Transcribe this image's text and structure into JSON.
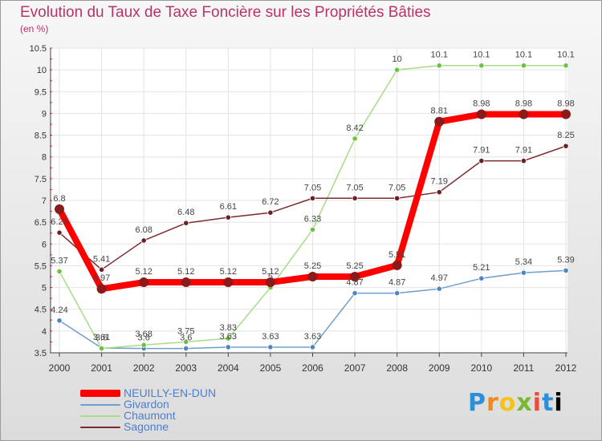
{
  "header": {
    "title": "Evolution du Taux de Taxe Foncière sur les Propriétés Bâties",
    "subtitle": "(en %)"
  },
  "logo": {
    "text": "Proxiti"
  },
  "chart_data": {
    "type": "line",
    "title": "Evolution du Taux de Taxe Foncière sur les Propriétés Bâties",
    "ylabel": "(en %)",
    "x": [
      "2000",
      "2001",
      "2002",
      "2003",
      "2004",
      "2005",
      "2006",
      "2007",
      "2008",
      "2009",
      "2010",
      "2011",
      "2012"
    ],
    "ylim": [
      3.5,
      10.5
    ],
    "yticks": [
      "3.5",
      "4",
      "4.5",
      "5",
      "5.5",
      "6",
      "6.5",
      "7",
      "7.5",
      "8",
      "8.5",
      "9",
      "9.5",
      "10",
      "10.5"
    ],
    "grid": true,
    "legend_position": "bottom-left",
    "series": [
      {
        "name": "NEUILLY-EN-DUN",
        "color": "#ff0000",
        "marker": "#8b1a1a",
        "emphasis": true,
        "values": [
          6.8,
          4.97,
          5.12,
          5.12,
          5.12,
          5.12,
          5.25,
          5.25,
          5.51,
          8.81,
          8.98,
          8.98,
          8.98
        ],
        "labels": [
          "6.8",
          "4.97",
          "5.12",
          "5.12",
          "5.12",
          "5.12",
          "5.25",
          "5.25",
          "5.51",
          "8.81",
          "8.98",
          "8.98",
          "8.98"
        ]
      },
      {
        "name": "Givardon",
        "color": "#6f9fcf",
        "marker": "#4f86c1",
        "values": [
          4.24,
          3.61,
          3.6,
          3.6,
          3.63,
          3.63,
          3.63,
          4.87,
          4.87,
          4.97,
          5.21,
          5.34,
          5.39
        ],
        "labels": [
          "4.24",
          "3.61",
          "3.6",
          "3.6",
          "3.63",
          "3.63",
          "3.63",
          "4.87",
          "4.87",
          "4.97",
          "5.21",
          "5.34",
          "5.39"
        ]
      },
      {
        "name": "Chaumont",
        "color": "#a8dc86",
        "marker": "#6fc23e",
        "values": [
          5.37,
          3.6,
          3.68,
          3.75,
          3.83,
          5.0,
          6.33,
          8.42,
          10.0,
          10.1,
          10.1,
          10.1,
          10.1
        ],
        "labels": [
          "5.37",
          "3.6",
          "3.68",
          "3.75",
          "3.83",
          "5",
          "6.33",
          "8.42",
          "10",
          "10.1",
          "10.1",
          "10.1",
          "10.1"
        ]
      },
      {
        "name": "Sagonne",
        "color": "#7b2b30",
        "marker": "#6d1f24",
        "values": [
          6.26,
          5.41,
          6.08,
          6.48,
          6.61,
          6.72,
          7.05,
          7.05,
          7.05,
          7.19,
          7.91,
          7.91,
          8.25
        ],
        "labels": [
          "6.26",
          "5.41",
          "6.08",
          "6.48",
          "6.61",
          "6.72",
          "7.05",
          "7.05",
          "7.05",
          "7.19",
          "7.91",
          "7.91",
          "8.25"
        ]
      }
    ]
  }
}
